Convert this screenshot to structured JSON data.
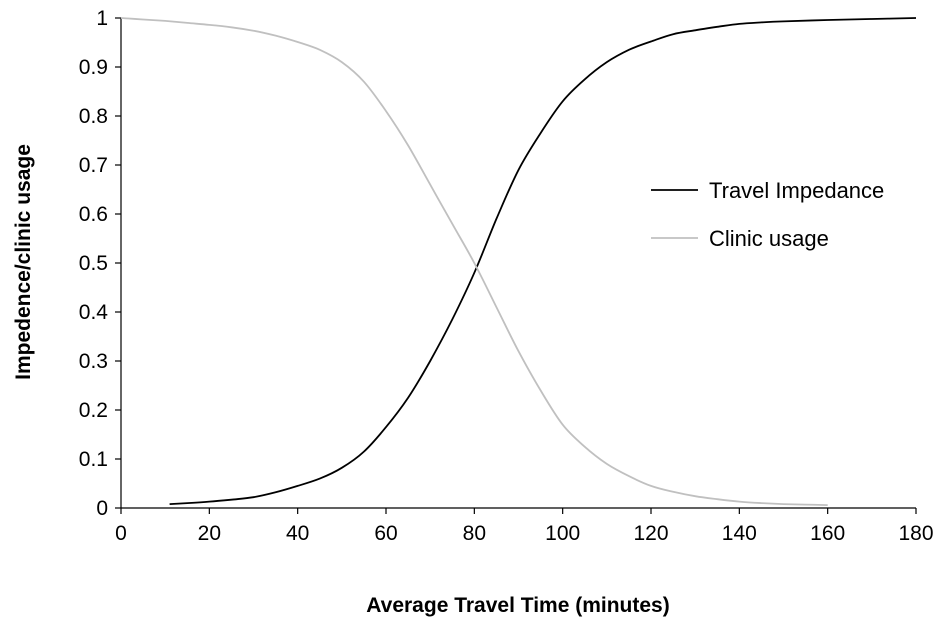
{
  "chart_data": {
    "type": "line",
    "title": "",
    "xlabel": "Average Travel Time (minutes)",
    "ylabel": "Impedence/clinic usage",
    "xlim": [
      0,
      180
    ],
    "ylim": [
      0,
      1
    ],
    "x_ticks": [
      0,
      20,
      40,
      60,
      80,
      100,
      120,
      140,
      160,
      180
    ],
    "y_ticks": [
      0,
      0.1,
      0.2,
      0.3,
      0.4,
      0.5,
      0.6,
      0.7,
      0.8,
      0.9,
      1
    ],
    "x_tick_labels": [
      "0",
      "20",
      "40",
      "60",
      "80",
      "100",
      "120",
      "140",
      "160",
      "180"
    ],
    "y_tick_labels": [
      "0",
      "0.1",
      "0.2",
      "0.3",
      "0.4",
      "0.5",
      "0.6",
      "0.7",
      "0.8",
      "0.9",
      "1"
    ],
    "grid": false,
    "legend_position": "right",
    "series": [
      {
        "name": "Travel Impedance",
        "color": "#000000",
        "x": [
          11,
          15,
          20,
          25,
          30,
          35,
          40,
          45,
          50,
          55,
          60,
          65,
          70,
          75,
          80,
          85,
          90,
          95,
          100,
          105,
          110,
          115,
          120,
          125,
          130,
          135,
          140,
          145,
          150,
          160,
          170,
          180
        ],
        "y": [
          0.008,
          0.01,
          0.013,
          0.017,
          0.022,
          0.032,
          0.045,
          0.06,
          0.082,
          0.115,
          0.165,
          0.225,
          0.3,
          0.385,
          0.48,
          0.59,
          0.69,
          0.765,
          0.83,
          0.875,
          0.91,
          0.935,
          0.952,
          0.967,
          0.975,
          0.982,
          0.988,
          0.991,
          0.993,
          0.996,
          0.998,
          1.0
        ]
      },
      {
        "name": "Clinic usage",
        "color": "#c0c0c0",
        "x": [
          0,
          5,
          10,
          15,
          20,
          25,
          30,
          35,
          40,
          45,
          50,
          55,
          60,
          65,
          70,
          75,
          80,
          85,
          90,
          95,
          100,
          105,
          110,
          115,
          120,
          125,
          130,
          135,
          140,
          145,
          150,
          155,
          160
        ],
        "y": [
          1.0,
          0.997,
          0.994,
          0.99,
          0.986,
          0.981,
          0.974,
          0.964,
          0.951,
          0.935,
          0.91,
          0.87,
          0.81,
          0.74,
          0.66,
          0.58,
          0.5,
          0.41,
          0.32,
          0.24,
          0.17,
          0.125,
          0.09,
          0.065,
          0.045,
          0.033,
          0.024,
          0.018,
          0.013,
          0.01,
          0.008,
          0.007,
          0.006
        ]
      }
    ]
  }
}
